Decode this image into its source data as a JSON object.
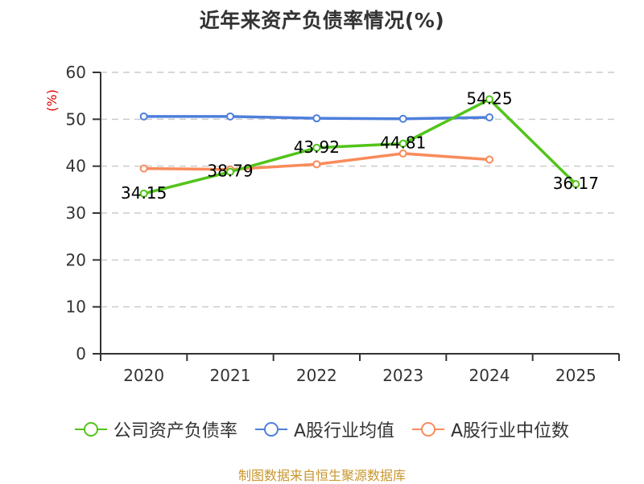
{
  "title": "近年来资产负债率情况(%)",
  "footer": "制图数据来自恒生聚源数据库",
  "colors": {
    "company": "#52c41a",
    "industry_avg": "#4e7fdc",
    "industry_median": "#f98b5b",
    "axis": "#333333",
    "grid": "#cccccc",
    "unit": "#e00000",
    "footer": "#c8962e"
  },
  "legend": [
    {
      "label": "公司资产负债率",
      "color": "#52c41a",
      "icon": "circle-line-icon"
    },
    {
      "label": "A股行业均值",
      "color": "#4e7fdc",
      "icon": "circle-line-icon"
    },
    {
      "label": "A股行业中位数",
      "color": "#f98b5b",
      "icon": "circle-line-icon"
    }
  ],
  "chart_data": {
    "type": "line",
    "title": "近年来资产负债率情况(%)",
    "xlabel": "",
    "ylabel": "(%)",
    "ylim": [
      0,
      60
    ],
    "yticks": [
      0,
      10,
      20,
      30,
      40,
      50,
      60
    ],
    "grid": true,
    "legend_position": "bottom",
    "categories": [
      "2020",
      "2021",
      "2022",
      "2023",
      "2024",
      "2025"
    ],
    "series": [
      {
        "name": "公司资产负债率",
        "values": [
          34.15,
          38.79,
          43.92,
          44.81,
          54.25,
          36.17
        ],
        "labels": [
          "34.15",
          "38.79",
          "43.92",
          "44.81",
          "54.25",
          "36.17"
        ]
      },
      {
        "name": "A股行业均值",
        "values": [
          50.6,
          50.6,
          50.2,
          50.1,
          50.4,
          null
        ]
      },
      {
        "name": "A股行业中位数",
        "values": [
          39.5,
          39.3,
          40.4,
          42.7,
          41.4,
          null
        ]
      }
    ]
  }
}
